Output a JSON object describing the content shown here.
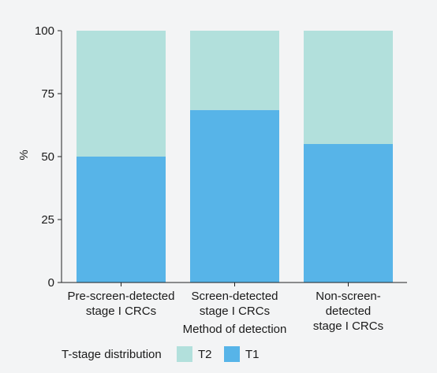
{
  "chart_data": {
    "type": "bar",
    "stacked": true,
    "categories": [
      [
        "Pre-screen-detected",
        "stage I CRCs"
      ],
      [
        "Screen-detected",
        "stage I CRCs"
      ],
      [
        "Non-screen-",
        "detected",
        "stage I CRCs"
      ]
    ],
    "series": [
      {
        "name": "T1",
        "values": [
          50,
          68.5,
          55
        ],
        "color": "#57b4e8"
      },
      {
        "name": "T2",
        "values": [
          50,
          31.5,
          45
        ],
        "color": "#b2e0dc"
      }
    ],
    "ylabel": "%",
    "xlabel": "Method of detection",
    "ylim": [
      0,
      100
    ],
    "yticks": [
      0,
      25,
      50,
      75,
      100
    ],
    "grid": false,
    "legend": {
      "title": "T-stage distribution",
      "placement": "bottom-left",
      "order": [
        "T2",
        "T1"
      ]
    }
  }
}
